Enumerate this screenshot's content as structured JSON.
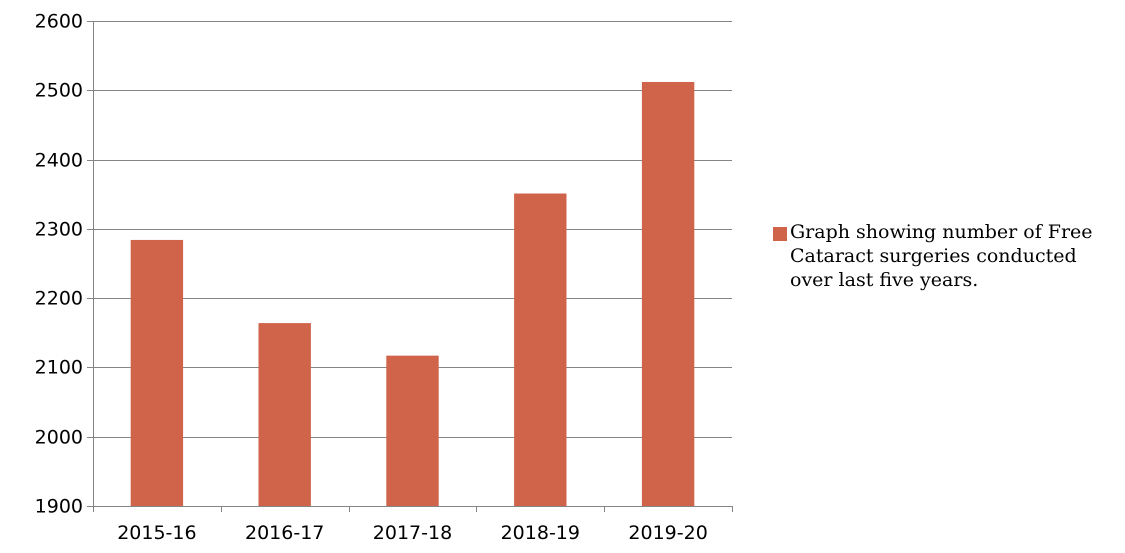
{
  "chart_data": {
    "type": "bar",
    "categories": [
      "2015-16",
      "2016-17",
      "2017-18",
      "2018-19",
      "2019-20"
    ],
    "series": [
      {
        "name": "Graph showing number of Free Cataract surgeries conducted over last five years.",
        "values": [
          2284,
          2164,
          2117,
          2351,
          2512
        ]
      }
    ],
    "ylim": [
      1900,
      2600
    ],
    "yticks": [
      1900,
      2000,
      2100,
      2200,
      2300,
      2400,
      2500,
      2600
    ],
    "grid": true,
    "legend_position": "right",
    "colors": {
      "bar": "#d0644a",
      "axis": "#858585",
      "grid": "#858585"
    }
  }
}
